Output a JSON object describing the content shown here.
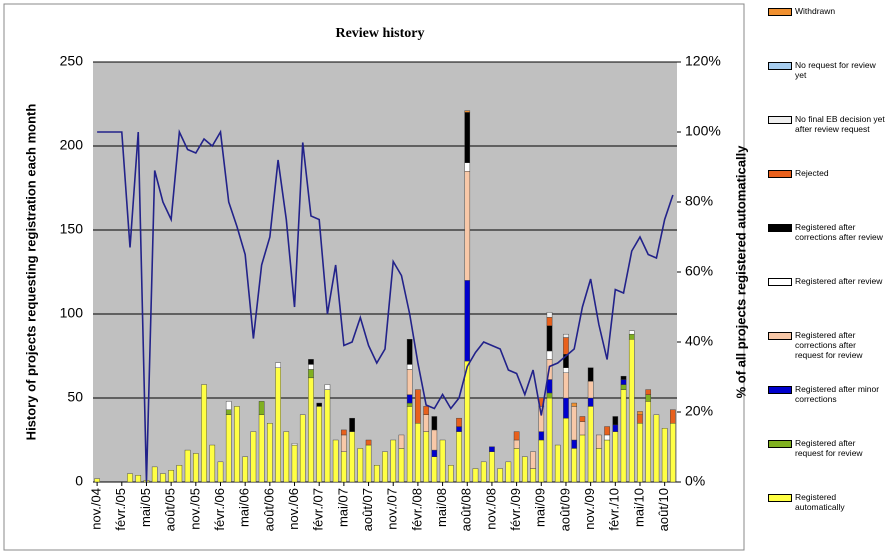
{
  "chart_data": {
    "type": "stacked_bar_line",
    "title": "Review history",
    "y_label": "History of projects requesting registration each month",
    "y2_label": "% of all projects registered automatically",
    "categories": [
      "nov./04",
      null,
      null,
      "févr./05",
      null,
      null,
      "mai/05",
      null,
      null,
      "août/05",
      null,
      null,
      "nov./05",
      null,
      null,
      "févr./06",
      null,
      null,
      "mai/06",
      null,
      null,
      "août/06",
      null,
      null,
      "nov./06",
      null,
      null,
      "févr./07",
      null,
      null,
      "mai/07",
      null,
      null,
      "août/07",
      null,
      null,
      "nov./07",
      null,
      null,
      "févr./08",
      null,
      null,
      "mai/08",
      null,
      null,
      "août/08",
      null,
      null,
      "nov./08",
      null,
      null,
      "févr./09",
      null,
      null,
      "mai/09",
      null,
      null,
      "août/09",
      null,
      null,
      "nov./09",
      null,
      null,
      "févr./10",
      null,
      null,
      "mai/10",
      null,
      null,
      "août/10",
      null
    ],
    "ylim": [
      0,
      250
    ],
    "yticks": [
      0,
      50,
      100,
      150,
      200,
      250
    ],
    "y2lim": [
      0,
      120
    ],
    "y2ticks": [
      {
        "value": 0,
        "label": "0%"
      },
      {
        "value": 20,
        "label": "20%"
      },
      {
        "value": 40,
        "label": "40%"
      },
      {
        "value": 60,
        "label": "60%"
      },
      {
        "value": 80,
        "label": "80%"
      },
      {
        "value": 100,
        "label": "100%"
      },
      {
        "value": 120,
        "label": "120%"
      }
    ],
    "grid": true,
    "series": [
      {
        "name": "Registered automatically",
        "color": "#ffff44",
        "values": [
          2,
          0,
          0,
          0,
          5,
          4,
          1,
          9,
          5,
          7,
          10,
          19,
          17,
          58,
          22,
          12,
          40,
          45,
          15,
          30,
          40,
          35,
          68,
          30,
          22,
          40,
          62,
          45,
          55,
          25,
          18,
          30,
          20,
          22,
          10,
          18,
          25,
          20,
          45,
          35,
          30,
          15,
          25,
          10,
          30,
          72,
          8,
          12,
          18,
          8,
          12,
          20,
          15,
          8,
          25,
          50,
          22,
          38,
          20,
          28,
          45,
          20,
          25,
          30,
          55,
          85,
          35,
          48,
          40,
          32,
          35
        ]
      },
      {
        "name": "Registered after request for review",
        "color": "#80b020",
        "values": [
          0,
          0,
          0,
          0,
          0,
          0,
          0,
          0,
          0,
          0,
          0,
          0,
          0,
          0,
          0,
          0,
          3,
          0,
          0,
          0,
          8,
          0,
          0,
          0,
          0,
          0,
          5,
          0,
          0,
          0,
          0,
          0,
          0,
          0,
          0,
          0,
          0,
          0,
          2,
          0,
          0,
          0,
          0,
          0,
          0,
          0,
          0,
          0,
          0,
          0,
          0,
          0,
          0,
          0,
          0,
          3,
          0,
          0,
          0,
          0,
          0,
          0,
          0,
          0,
          3,
          3,
          0,
          4,
          0,
          0,
          0
        ]
      },
      {
        "name": "Registered after minor corrections",
        "color": "#0000cc",
        "values": [
          0,
          0,
          0,
          0,
          0,
          0,
          0,
          0,
          0,
          0,
          0,
          0,
          0,
          0,
          0,
          0,
          0,
          0,
          0,
          0,
          0,
          0,
          0,
          0,
          0,
          0,
          0,
          0,
          0,
          0,
          0,
          0,
          0,
          0,
          0,
          0,
          0,
          0,
          5,
          0,
          0,
          4,
          0,
          0,
          3,
          48,
          0,
          0,
          3,
          0,
          0,
          0,
          0,
          0,
          5,
          8,
          0,
          12,
          5,
          0,
          5,
          0,
          0,
          4,
          3,
          0,
          0,
          0,
          0,
          0,
          0
        ]
      },
      {
        "name": "Registered after corrections after request for review",
        "color": "#f8c8a8",
        "values": [
          0,
          0,
          0,
          0,
          0,
          0,
          0,
          0,
          0,
          0,
          0,
          0,
          0,
          0,
          0,
          0,
          0,
          0,
          0,
          0,
          0,
          0,
          0,
          0,
          0,
          0,
          0,
          0,
          0,
          0,
          10,
          0,
          0,
          0,
          0,
          0,
          0,
          8,
          15,
          0,
          10,
          12,
          0,
          0,
          0,
          65,
          0,
          0,
          0,
          0,
          0,
          5,
          0,
          10,
          15,
          12,
          0,
          15,
          20,
          8,
          10,
          8,
          0,
          0,
          0,
          0,
          0,
          0,
          0,
          0,
          0
        ]
      },
      {
        "name": "Registered after review",
        "color": "#ffffff",
        "values": [
          0,
          0,
          0,
          0,
          0,
          0,
          0,
          0,
          0,
          0,
          0,
          0,
          0,
          0,
          0,
          0,
          5,
          0,
          0,
          0,
          0,
          0,
          3,
          0,
          1,
          0,
          3,
          0,
          3,
          0,
          0,
          0,
          0,
          0,
          0,
          0,
          0,
          0,
          3,
          0,
          0,
          0,
          0,
          0,
          0,
          5,
          0,
          0,
          0,
          0,
          0,
          0,
          0,
          0,
          0,
          5,
          0,
          3,
          0,
          0,
          0,
          0,
          3,
          0,
          0,
          2,
          0,
          0,
          0,
          0,
          0
        ]
      },
      {
        "name": "Registered after corrections after review",
        "color": "#000000",
        "values": [
          0,
          0,
          0,
          0,
          0,
          0,
          0,
          0,
          0,
          0,
          0,
          0,
          0,
          0,
          0,
          0,
          0,
          0,
          0,
          0,
          0,
          0,
          0,
          0,
          0,
          0,
          3,
          2,
          0,
          0,
          0,
          8,
          0,
          0,
          0,
          0,
          0,
          0,
          15,
          0,
          0,
          8,
          0,
          0,
          0,
          30,
          0,
          0,
          0,
          0,
          0,
          0,
          0,
          0,
          0,
          15,
          0,
          8,
          0,
          0,
          8,
          0,
          0,
          5,
          2,
          0,
          0,
          0,
          0,
          0,
          0
        ]
      },
      {
        "name": "Rejected",
        "color": "#e8601c",
        "values": [
          0,
          0,
          0,
          0,
          0,
          0,
          0,
          0,
          0,
          0,
          0,
          0,
          0,
          0,
          0,
          0,
          0,
          0,
          0,
          0,
          0,
          0,
          0,
          0,
          0,
          0,
          0,
          0,
          0,
          0,
          3,
          0,
          0,
          3,
          0,
          0,
          0,
          0,
          0,
          20,
          5,
          0,
          0,
          0,
          5,
          0,
          0,
          0,
          0,
          0,
          0,
          5,
          0,
          0,
          5,
          5,
          0,
          10,
          0,
          3,
          0,
          0,
          5,
          0,
          0,
          0,
          5,
          3,
          0,
          0,
          8
        ]
      },
      {
        "name": "No final EB decision yet after review request",
        "color": "#eeeeee",
        "values": [
          0,
          0,
          0,
          0,
          0,
          0,
          0,
          0,
          0,
          0,
          0,
          0,
          0,
          0,
          0,
          0,
          0,
          0,
          0,
          0,
          0,
          0,
          0,
          0,
          0,
          0,
          0,
          0,
          0,
          0,
          0,
          0,
          0,
          0,
          0,
          0,
          0,
          0,
          0,
          0,
          0,
          0,
          0,
          0,
          0,
          0,
          0,
          0,
          0,
          0,
          0,
          0,
          0,
          0,
          0,
          3,
          0,
          2,
          0,
          0,
          0,
          0,
          0,
          0,
          0,
          0,
          0,
          0,
          0,
          0,
          0
        ]
      },
      {
        "name": "No request for review yet",
        "color": "#a8cef0",
        "values": [
          0,
          0,
          0,
          0,
          0,
          0,
          0,
          0,
          0,
          0,
          0,
          0,
          0,
          0,
          0,
          0,
          0,
          0,
          0,
          0,
          0,
          0,
          0,
          0,
          0,
          0,
          0,
          0,
          0,
          0,
          0,
          0,
          0,
          0,
          0,
          0,
          0,
          0,
          0,
          0,
          0,
          0,
          0,
          0,
          0,
          0,
          0,
          0,
          0,
          0,
          0,
          0,
          0,
          0,
          0,
          0,
          0,
          0,
          0,
          0,
          0,
          0,
          0,
          0,
          0,
          0,
          0,
          0,
          0,
          0,
          0
        ]
      },
      {
        "name": "Withdrawn",
        "color": "#f09030",
        "values": [
          0,
          0,
          0,
          0,
          0,
          0,
          0,
          0,
          0,
          0,
          0,
          0,
          0,
          0,
          0,
          0,
          0,
          0,
          0,
          0,
          0,
          0,
          0,
          0,
          0,
          0,
          0,
          0,
          0,
          0,
          0,
          0,
          0,
          0,
          0,
          0,
          0,
          0,
          0,
          0,
          0,
          0,
          0,
          0,
          0,
          1,
          0,
          0,
          0,
          0,
          0,
          0,
          0,
          0,
          0,
          0,
          0,
          0,
          2,
          0,
          0,
          0,
          0,
          0,
          0,
          0,
          2,
          0,
          0,
          0,
          0
        ]
      },
      {
        "name": "% of all projects registered automatically",
        "type": "line",
        "axis": "y2",
        "color": "#22228a",
        "values": [
          100,
          100,
          100,
          100,
          67,
          100,
          0,
          89,
          80,
          75,
          100,
          95,
          94,
          98,
          96,
          100,
          80,
          73,
          65,
          41,
          62,
          70,
          92,
          75,
          50,
          97,
          76,
          75,
          48,
          62,
          39,
          40,
          47,
          39,
          34,
          38,
          63,
          59,
          48,
          34,
          22,
          21,
          25,
          21,
          24,
          33,
          37,
          40,
          39,
          38,
          32,
          31,
          25,
          32,
          19,
          33,
          34,
          36,
          38,
          50,
          58,
          45,
          35,
          55,
          54,
          66,
          70,
          65,
          64,
          75,
          82
        ]
      }
    ]
  }
}
